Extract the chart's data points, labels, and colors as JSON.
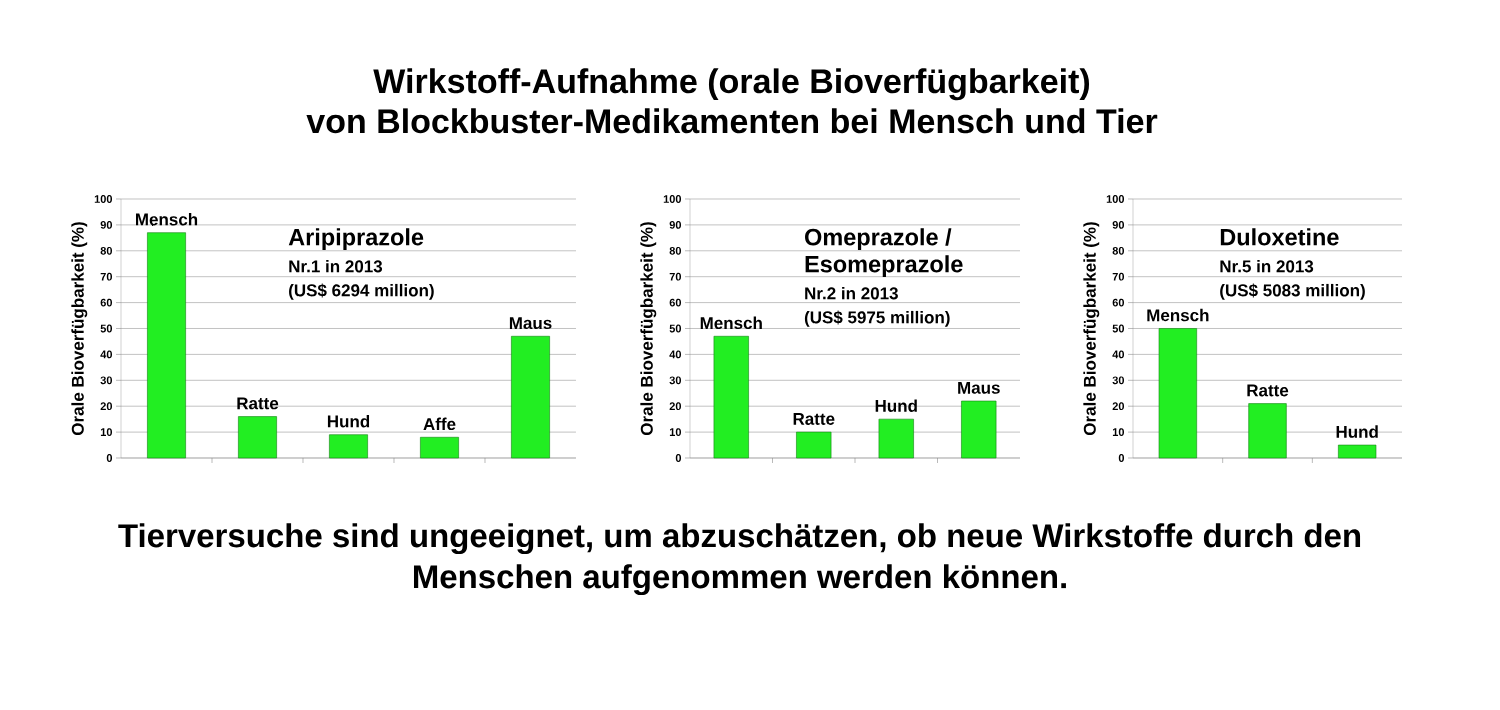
{
  "chart_data": [
    {
      "type": "other",
      "title": "Wirkstoff-Aufnahme (orale Bioverfügbarkeit)",
      "subtitle": "von Blockbuster-Medikamenten bei Mensch und Tier",
      "annotations": [
        "Tierversuche sind ungeeignet, um abzuschätzen, ob neue Wirkstoffe durch den Menschen aufgenommen werden können."
      ]
    },
    {
      "type": "bar",
      "title": "Aripiprazole",
      "annotations": [
        "Nr.1 in 2013",
        "(US$ 6294 million)"
      ],
      "categories": [
        "Mensch",
        "Ratte",
        "Hund",
        "Affe",
        "Maus"
      ],
      "values": [
        87,
        16,
        9,
        8,
        47
      ],
      "color": "#22ee22",
      "ylabel": "Orale Bioverfügbarkeit (%)",
      "ylim": [
        0,
        100
      ],
      "yticks": [
        0,
        10,
        20,
        30,
        40,
        50,
        60,
        70,
        80,
        90,
        100
      ],
      "grid": "y"
    },
    {
      "type": "bar",
      "title": "Omeprazole / Esomeprazole",
      "annotations": [
        "Nr.2 in 2013",
        "(US$ 5975 million)"
      ],
      "categories": [
        "Mensch",
        "Ratte",
        "Hund",
        "Maus"
      ],
      "values": [
        47,
        10,
        15,
        22
      ],
      "color": "#22ee22",
      "ylabel": "Orale Bioverfügbarkeit (%)",
      "ylim": [
        0,
        100
      ],
      "yticks": [
        0,
        10,
        20,
        30,
        40,
        50,
        60,
        70,
        80,
        90,
        100
      ],
      "grid": "y"
    },
    {
      "type": "bar",
      "title": "Duloxetine",
      "annotations": [
        "Nr.5 in 2013",
        "(US$ 5083 million)"
      ],
      "categories": [
        "Mensch",
        "Ratte",
        "Hund"
      ],
      "values": [
        50,
        21,
        5
      ],
      "color": "#22ee22",
      "ylabel": "Orale Bioverfügbarkeit (%)",
      "ylim": [
        0,
        100
      ],
      "yticks": [
        0,
        10,
        20,
        30,
        40,
        50,
        60,
        70,
        80,
        90,
        100
      ],
      "grid": "y"
    }
  ]
}
